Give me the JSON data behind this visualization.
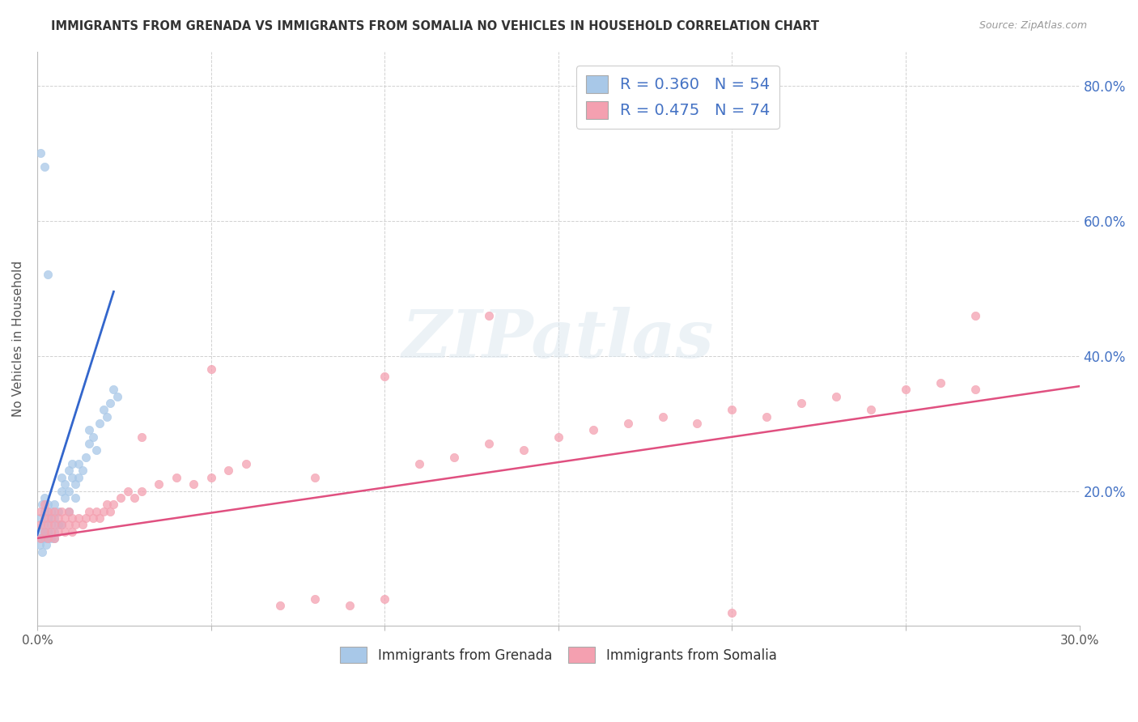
{
  "title": "IMMIGRANTS FROM GRENADA VS IMMIGRANTS FROM SOMALIA NO VEHICLES IN HOUSEHOLD CORRELATION CHART",
  "source": "Source: ZipAtlas.com",
  "ylabel": "No Vehicles in Household",
  "xlim": [
    0.0,
    0.3
  ],
  "ylim": [
    0.0,
    0.85
  ],
  "grenada_color": "#a8c8e8",
  "somalia_color": "#f4a0b0",
  "grenada_line_color": "#3366cc",
  "somalia_line_color": "#e05080",
  "grenada_trendline_dashed": true,
  "R_grenada": 0.36,
  "N_grenada": 54,
  "R_somalia": 0.475,
  "N_somalia": 74,
  "axis_label_color": "#4472c4",
  "watermark_text": "ZIPatlas",
  "background_color": "#ffffff",
  "grenada_x": [
    0.0008,
    0.001,
    0.001,
    0.0012,
    0.0015,
    0.0015,
    0.0018,
    0.002,
    0.002,
    0.002,
    0.0022,
    0.0025,
    0.003,
    0.003,
    0.003,
    0.003,
    0.004,
    0.004,
    0.004,
    0.005,
    0.005,
    0.005,
    0.006,
    0.006,
    0.007,
    0.007,
    0.008,
    0.008,
    0.009,
    0.009,
    0.01,
    0.01,
    0.011,
    0.011,
    0.012,
    0.012,
    0.013,
    0.014,
    0.015,
    0.015,
    0.016,
    0.017,
    0.018,
    0.019,
    0.02,
    0.021,
    0.022,
    0.023,
    0.005,
    0.007,
    0.009,
    0.001,
    0.002,
    0.003
  ],
  "grenada_y": [
    0.12,
    0.14,
    0.16,
    0.13,
    0.11,
    0.18,
    0.15,
    0.17,
    0.14,
    0.19,
    0.13,
    0.12,
    0.13,
    0.14,
    0.16,
    0.18,
    0.17,
    0.15,
    0.13,
    0.16,
    0.14,
    0.18,
    0.15,
    0.17,
    0.2,
    0.22,
    0.19,
    0.21,
    0.23,
    0.2,
    0.22,
    0.24,
    0.21,
    0.19,
    0.22,
    0.24,
    0.23,
    0.25,
    0.27,
    0.29,
    0.28,
    0.26,
    0.3,
    0.32,
    0.31,
    0.33,
    0.35,
    0.34,
    0.13,
    0.15,
    0.17,
    0.7,
    0.68,
    0.52
  ],
  "somalia_x": [
    0.001,
    0.001,
    0.001,
    0.002,
    0.002,
    0.002,
    0.003,
    0.003,
    0.003,
    0.004,
    0.004,
    0.005,
    0.005,
    0.005,
    0.006,
    0.006,
    0.007,
    0.007,
    0.008,
    0.008,
    0.009,
    0.009,
    0.01,
    0.01,
    0.011,
    0.012,
    0.013,
    0.014,
    0.015,
    0.016,
    0.017,
    0.018,
    0.019,
    0.02,
    0.021,
    0.022,
    0.024,
    0.026,
    0.028,
    0.03,
    0.035,
    0.04,
    0.045,
    0.05,
    0.055,
    0.06,
    0.07,
    0.08,
    0.09,
    0.1,
    0.11,
    0.12,
    0.13,
    0.14,
    0.15,
    0.16,
    0.17,
    0.18,
    0.19,
    0.2,
    0.21,
    0.22,
    0.23,
    0.24,
    0.25,
    0.26,
    0.27,
    0.03,
    0.05,
    0.08,
    0.1,
    0.13,
    0.2,
    0.27
  ],
  "somalia_y": [
    0.13,
    0.15,
    0.17,
    0.14,
    0.16,
    0.18,
    0.13,
    0.15,
    0.17,
    0.14,
    0.16,
    0.13,
    0.15,
    0.17,
    0.14,
    0.16,
    0.15,
    0.17,
    0.14,
    0.16,
    0.15,
    0.17,
    0.14,
    0.16,
    0.15,
    0.16,
    0.15,
    0.16,
    0.17,
    0.16,
    0.17,
    0.16,
    0.17,
    0.18,
    0.17,
    0.18,
    0.19,
    0.2,
    0.19,
    0.2,
    0.21,
    0.22,
    0.21,
    0.22,
    0.23,
    0.24,
    0.03,
    0.04,
    0.03,
    0.04,
    0.24,
    0.25,
    0.27,
    0.26,
    0.28,
    0.29,
    0.3,
    0.31,
    0.3,
    0.32,
    0.31,
    0.33,
    0.34,
    0.32,
    0.35,
    0.36,
    0.35,
    0.28,
    0.38,
    0.22,
    0.37,
    0.46,
    0.02,
    0.46
  ],
  "grenada_trend_x": [
    0.0,
    0.022
  ],
  "grenada_trend_y": [
    0.135,
    0.495
  ],
  "somalia_trend_x": [
    0.0,
    0.3
  ],
  "somalia_trend_y": [
    0.13,
    0.355
  ]
}
